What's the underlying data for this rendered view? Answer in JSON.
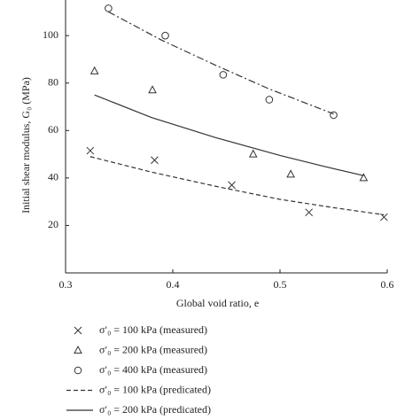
{
  "chart_data": {
    "type": "line",
    "x_label": "Global void ratio, e",
    "y_label": "Initial shear modulus, G₀ (MPa)",
    "xlim": [
      0.3,
      0.6
    ],
    "xticks": [
      0.3,
      0.4,
      0.5,
      0.6
    ],
    "ylim": [
      0,
      115
    ],
    "yticks": [
      20,
      40,
      60,
      80,
      100
    ],
    "series": [
      {
        "name": "σ′₀ = 100 kPa (measured)",
        "mode": "markers",
        "marker": "x",
        "color": "#333",
        "x": [
          0.323,
          0.383,
          0.455,
          0.527,
          0.597
        ],
        "values": [
          51.5,
          47.5,
          37,
          25.5,
          23.5
        ]
      },
      {
        "name": "σ′₀ = 200 kPa (measured)",
        "mode": "markers",
        "marker": "triangle",
        "color": "#333",
        "x": [
          0.327,
          0.381,
          0.475,
          0.51,
          0.578
        ],
        "values": [
          85,
          77,
          50,
          41.5,
          40
        ]
      },
      {
        "name": "σ′₀ = 400 kPa (measured)",
        "mode": "markers",
        "marker": "circle",
        "color": "#333",
        "x": [
          0.34,
          0.393,
          0.447,
          0.49,
          0.55
        ],
        "values": [
          111.5,
          100,
          83.5,
          73,
          66.5
        ]
      },
      {
        "name": "σ′₀ = 100 kPa (predicated)",
        "mode": "line",
        "dash": "dashed",
        "color": "#333",
        "x": [
          0.323,
          0.38,
          0.44,
          0.5,
          0.55,
          0.597
        ],
        "values": [
          49,
          42.5,
          36.5,
          31,
          27.5,
          24.5
        ]
      },
      {
        "name": "σ′₀ = 200 kPa (predicated)",
        "mode": "line",
        "dash": "solid",
        "color": "#333",
        "x": [
          0.327,
          0.38,
          0.44,
          0.5,
          0.54,
          0.578
        ],
        "values": [
          75,
          65.5,
          57,
          49.5,
          45,
          41
        ]
      },
      {
        "mode": "line",
        "dash": "dashdot",
        "color": "#333",
        "x": [
          0.34,
          0.39,
          0.44,
          0.49,
          0.55
        ],
        "values": [
          110,
          98,
          87.5,
          77.5,
          67
        ]
      }
    ]
  }
}
